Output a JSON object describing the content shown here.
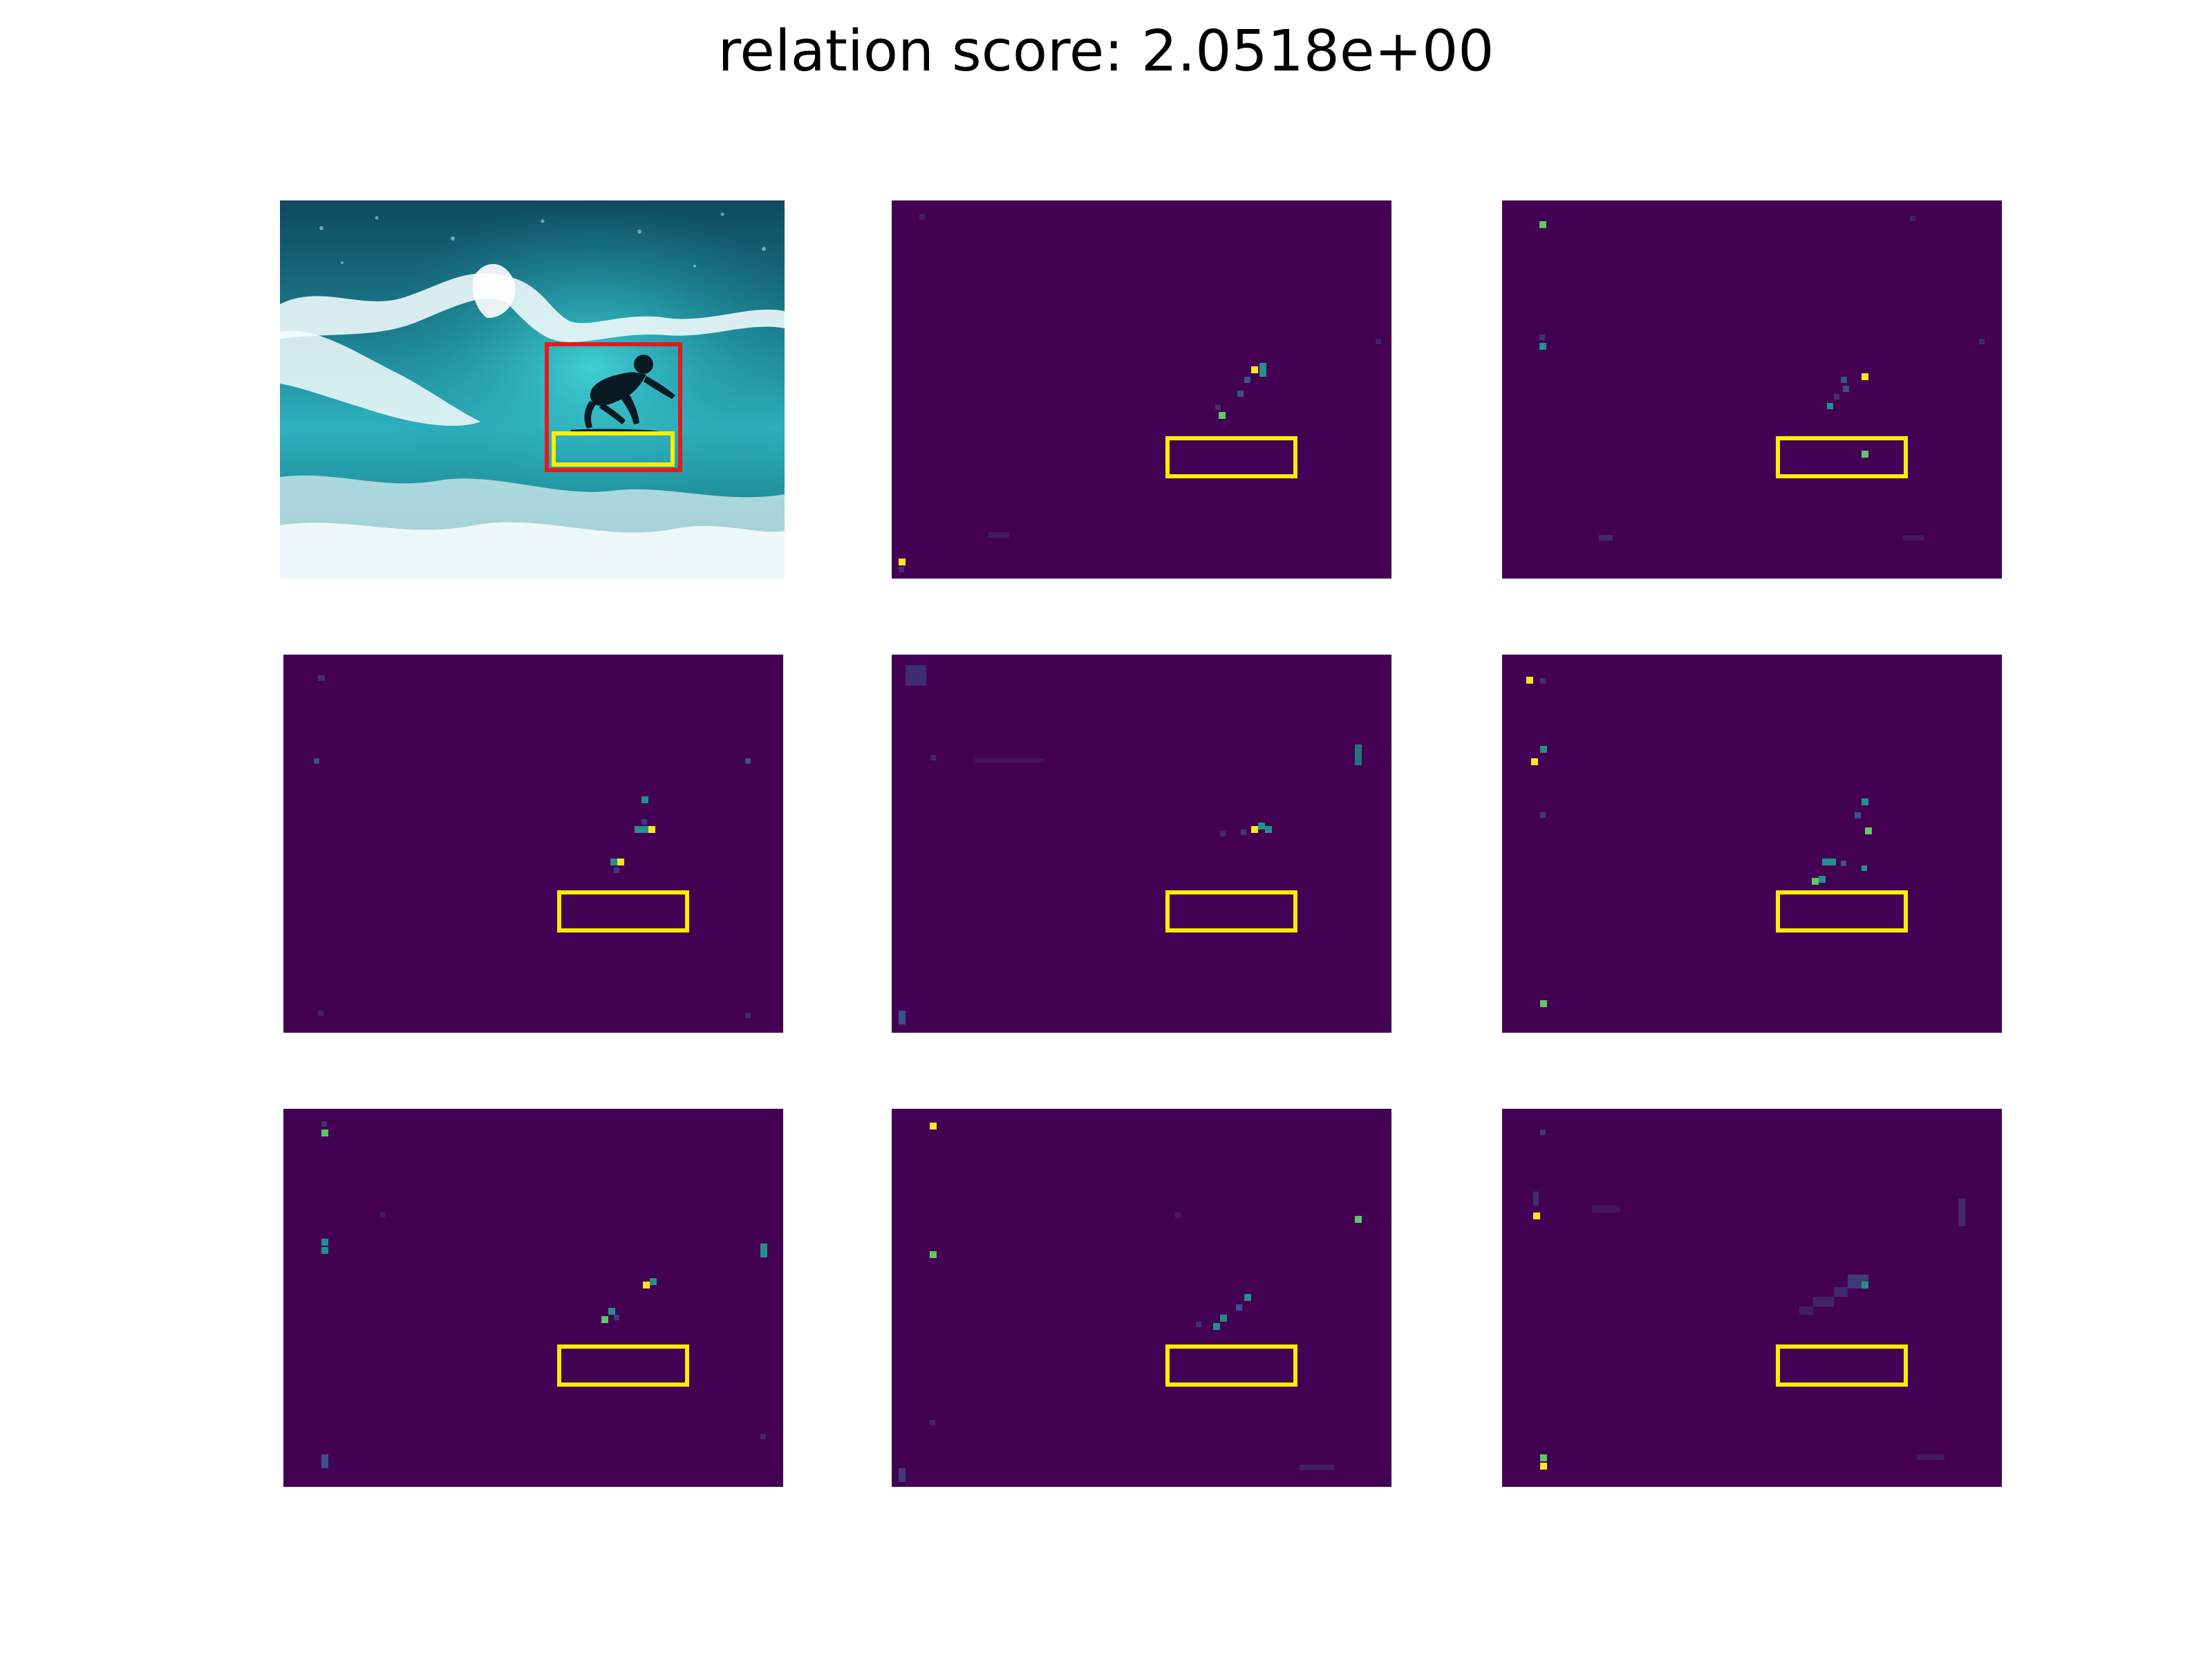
{
  "title": "relation score: 2.0518e+00",
  "colors": {
    "heatmap_background": "#440154",
    "subject_box": "#e31a1c",
    "object_box": "#ffee00",
    "viridis_low": "#3b528b",
    "viridis_mid": "#21918c",
    "viridis_high": "#5ec962",
    "viridis_max": "#fde725"
  },
  "photo": {
    "icon": "surfer-on-wave-photo"
  }
}
